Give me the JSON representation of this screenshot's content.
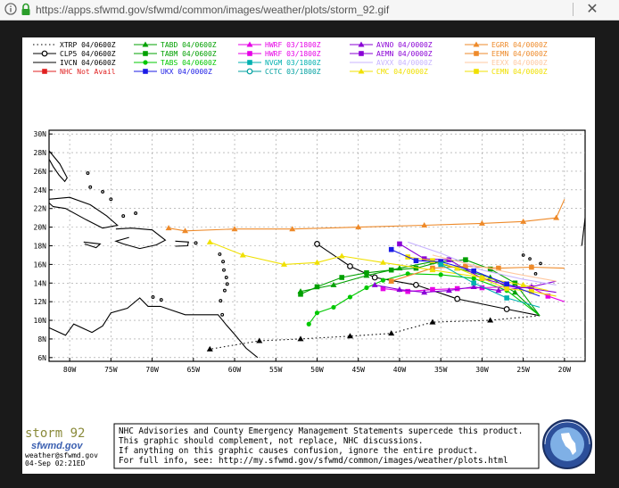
{
  "browser": {
    "url": "https://apps.sfwmd.gov/sfwmd/common/images/weather/plots/storm_92.gif",
    "close_glyph": "✕"
  },
  "legend": [
    {
      "label": "XTRP 04/0600Z",
      "color": "#000000",
      "marker": "dot-line"
    },
    {
      "label": "TABD 04/0600Z",
      "color": "#00a000",
      "marker": "triangle"
    },
    {
      "label": "HWRF 03/1800Z",
      "color": "#e600e6",
      "marker": "triangle"
    },
    {
      "label": "AVNO 04/0000Z",
      "color": "#8a00d6",
      "marker": "triangle"
    },
    {
      "label": "EGRR 04/0000Z",
      "color": "#ee8a2a",
      "marker": "triangle"
    },
    {
      "label": "CLP5 04/0600Z",
      "color": "#000000",
      "marker": "circle"
    },
    {
      "label": "TABM 04/0600Z",
      "color": "#00a000",
      "marker": "square"
    },
    {
      "label": "HWRF 03/1800Z",
      "color": "#e600e6",
      "marker": "square"
    },
    {
      "label": "AEMN 04/0000Z",
      "color": "#8a00d6",
      "marker": "square"
    },
    {
      "label": "EEMN 04/0000Z",
      "color": "#ee8a2a",
      "marker": "square"
    },
    {
      "label": "IVCN 04/0600Z",
      "color": "#000000",
      "marker": "line"
    },
    {
      "label": "TABS 04/0600Z",
      "color": "#00c800",
      "marker": "dot"
    },
    {
      "label": "NVGM 03/1800Z",
      "color": "#00b0b0",
      "marker": "square"
    },
    {
      "label": "AVXX 04/0000Z",
      "color": "#c8b4ff",
      "marker": "line"
    },
    {
      "label": "EEXX 04/0000Z",
      "color": "#ffc8a0",
      "marker": "line"
    },
    {
      "label": "NHC Not Avail",
      "color": "#e02020",
      "marker": "square"
    },
    {
      "label": "UKX 04/0000Z",
      "color": "#1a1ae6",
      "marker": "square"
    },
    {
      "label": "CCTC 03/1800Z",
      "color": "#00a0a0",
      "marker": "circle"
    },
    {
      "label": "CMC 04/0000Z",
      "color": "#f0e000",
      "marker": "triangle"
    },
    {
      "label": "CEMN 04/0000Z",
      "color": "#f0e000",
      "marker": "square"
    }
  ],
  "map": {
    "lat_ticks": [
      30,
      28,
      26,
      24,
      22,
      20,
      18,
      16,
      14,
      12,
      10,
      8,
      6
    ],
    "lat_labels": [
      "30N",
      "28N",
      "26N",
      "24N",
      "22N",
      "20N",
      "18N",
      "16N",
      "14N",
      "12N",
      "10N",
      "8N",
      "6N"
    ],
    "lon_ticks": [
      80,
      75,
      70,
      65,
      60,
      55,
      50,
      45,
      40,
      35,
      30,
      25,
      20
    ],
    "lon_labels": [
      "80W",
      "75W",
      "70W",
      "65W",
      "60W",
      "55W",
      "50W",
      "45W",
      "40W",
      "35W",
      "30W",
      "25W",
      "20W"
    ]
  },
  "chart_data": {
    "type": "scatter",
    "title": "",
    "xlabel": "",
    "ylabel": "",
    "xlim": [
      -82.5,
      -17.5
    ],
    "ylim": [
      5.6,
      30.4
    ],
    "grid": true,
    "series": [
      {
        "name": "XTRP 04/0600Z",
        "color": "#000000",
        "marker": "triangle",
        "line": "dotted",
        "points": [
          [
            -23,
            10.5
          ],
          [
            -29,
            10
          ],
          [
            -36,
            9.8
          ],
          [
            -41,
            8.6
          ],
          [
            -46,
            8.3
          ],
          [
            -52,
            8
          ],
          [
            -57,
            7.8
          ],
          [
            -63,
            6.9
          ]
        ]
      },
      {
        "name": "CLP5 04/0600Z",
        "color": "#000000",
        "marker": "circle",
        "line": "solid",
        "points": [
          [
            -23,
            10.5
          ],
          [
            -27,
            11.2
          ],
          [
            -33,
            12.3
          ],
          [
            -38,
            13.8
          ],
          [
            -43,
            14.6
          ],
          [
            -46,
            15.8
          ],
          [
            -50,
            18.2
          ]
        ]
      },
      {
        "name": "TABD 04/0600Z",
        "color": "#00a000",
        "marker": "triangle",
        "line": "solid",
        "points": [
          [
            -23,
            10.5
          ],
          [
            -26,
            13
          ],
          [
            -29,
            14.6
          ],
          [
            -33,
            15.6
          ],
          [
            -36,
            16.3
          ],
          [
            -40,
            15.6
          ],
          [
            -44,
            14.8
          ],
          [
            -48,
            13.8
          ],
          [
            -52,
            13.1
          ]
        ]
      },
      {
        "name": "TABM 04/0600Z",
        "color": "#00a000",
        "marker": "square",
        "line": "solid",
        "points": [
          [
            -23,
            10.5
          ],
          [
            -26,
            14
          ],
          [
            -29,
            15.5
          ],
          [
            -32,
            16.5
          ],
          [
            -35,
            16.3
          ],
          [
            -38,
            15.6
          ],
          [
            -41,
            15.4
          ],
          [
            -44,
            15.1
          ],
          [
            -47,
            14.6
          ],
          [
            -50,
            13.6
          ],
          [
            -52,
            12.8
          ]
        ]
      },
      {
        "name": "TABS 04/0600Z",
        "color": "#00c800",
        "marker": "dot",
        "line": "solid",
        "points": [
          [
            -23,
            10.5
          ],
          [
            -27,
            13.2
          ],
          [
            -31,
            14.5
          ],
          [
            -35,
            14.9
          ],
          [
            -39,
            15
          ],
          [
            -42,
            14.3
          ],
          [
            -44,
            13.5
          ],
          [
            -46,
            12.5
          ],
          [
            -48,
            11.4
          ],
          [
            -50,
            10.8
          ],
          [
            -51,
            9.6
          ]
        ]
      },
      {
        "name": "HWRF 03/1800Z",
        "color": "#e600e6",
        "marker": "square",
        "line": "solid",
        "points": [
          [
            -20,
            12
          ],
          [
            -22,
            12.6
          ],
          [
            -24,
            13.5
          ],
          [
            -27,
            13.6
          ],
          [
            -30,
            13.5
          ],
          [
            -33,
            13.4
          ],
          [
            -36,
            13.3
          ],
          [
            -39,
            13.1
          ],
          [
            -42,
            13.4
          ]
        ]
      },
      {
        "name": "AVNO 04/0000Z",
        "color": "#8a00d6",
        "marker": "triangle",
        "line": "solid",
        "points": [
          [
            -21,
            14.2
          ],
          [
            -24,
            13.6
          ],
          [
            -28,
            13.2
          ],
          [
            -31,
            13.6
          ],
          [
            -34,
            13.2
          ],
          [
            -37,
            13
          ],
          [
            -40,
            13.3
          ],
          [
            -43,
            13.8
          ]
        ]
      },
      {
        "name": "AEMN 04/0000Z",
        "color": "#8a00d6",
        "marker": "square",
        "line": "solid",
        "points": [
          [
            -21,
            13
          ],
          [
            -24,
            13.4
          ],
          [
            -27,
            13.8
          ],
          [
            -30,
            14.5
          ],
          [
            -34,
            16.5
          ],
          [
            -37,
            16.6
          ],
          [
            -40,
            18.2
          ]
        ]
      },
      {
        "name": "EGRR 04/0000Z",
        "color": "#ee8a2a",
        "marker": "triangle",
        "line": "solid",
        "points": [
          [
            -20,
            23
          ],
          [
            -21,
            21
          ],
          [
            -25,
            20.6
          ],
          [
            -30,
            20.4
          ],
          [
            -37,
            20.2
          ],
          [
            -45,
            20
          ],
          [
            -53,
            19.8
          ],
          [
            -60,
            19.8
          ],
          [
            -66,
            19.6
          ],
          [
            -68,
            19.9
          ]
        ]
      },
      {
        "name": "EEMN 04/0000Z",
        "color": "#ee8a2a",
        "marker": "square",
        "line": "solid",
        "points": [
          [
            -20,
            15.6
          ],
          [
            -24,
            15.7
          ],
          [
            -28,
            15.6
          ],
          [
            -32,
            15.8
          ],
          [
            -36,
            15.6
          ],
          [
            -41,
            14.2
          ]
        ]
      },
      {
        "name": "CMC 04/0000Z",
        "color": "#f0e000",
        "marker": "triangle",
        "line": "solid",
        "points": [
          [
            -22,
            13.2
          ],
          [
            -25,
            13.8
          ],
          [
            -30,
            14.6
          ],
          [
            -36,
            15.4
          ],
          [
            -42,
            16.2
          ],
          [
            -47,
            16.9
          ],
          [
            -50,
            16.2
          ],
          [
            -54,
            16
          ],
          [
            -59,
            17
          ],
          [
            -63,
            18.4
          ]
        ]
      },
      {
        "name": "CEMN 04/0000Z",
        "color": "#f0e000",
        "marker": "square",
        "line": "solid",
        "points": [
          [
            -21,
            12.6
          ],
          [
            -24,
            13.1
          ],
          [
            -27,
            13.4
          ],
          [
            -30,
            14.5
          ],
          [
            -33,
            15.6
          ],
          [
            -36,
            16.4
          ],
          [
            -39,
            16.8
          ]
        ]
      },
      {
        "name": "UKX 04/0000Z",
        "color": "#1a1ae6",
        "marker": "square",
        "line": "solid",
        "points": [
          [
            -23,
            12.6
          ],
          [
            -27,
            13.9
          ],
          [
            -31,
            15.3
          ],
          [
            -35,
            16.3
          ],
          [
            -38,
            16.4
          ],
          [
            -41,
            17.6
          ]
        ]
      },
      {
        "name": "NVGM 03/1800Z",
        "color": "#00b0b0",
        "marker": "square",
        "line": "solid",
        "points": [
          [
            -23,
            11.4
          ],
          [
            -27,
            12.4
          ],
          [
            -31,
            14
          ],
          [
            -35,
            16
          ]
        ]
      },
      {
        "name": "AVXX 04/0000Z",
        "color": "#c8b4ff",
        "marker": "none",
        "line": "solid",
        "points": [
          [
            -21,
            13.8
          ],
          [
            -25,
            14.4
          ],
          [
            -30,
            15.4
          ],
          [
            -35,
            17.2
          ],
          [
            -39,
            18.4
          ]
        ]
      },
      {
        "name": "EEXX 04/0000Z",
        "color": "#ffc8a0",
        "marker": "none",
        "line": "solid",
        "points": [
          [
            -21,
            14.2
          ],
          [
            -26,
            15
          ],
          [
            -31,
            15.9
          ],
          [
            -36,
            17
          ]
        ]
      }
    ]
  },
  "footer": {
    "storm_name": "storm_92",
    "logo_text": "sfwmd.gov",
    "email": "weather@sfwmd.gov",
    "timestamp": "04-Sep 02:21ED",
    "notice_lines": [
      "NHC Advisories and County Emergency Management Statements supercede this product.",
      "This graphic should complement, not replace, NHC discussions.",
      "If anything on this graphic causes confusion, ignore the entire product.",
      "For full info, see:  http://my.sfwmd.gov/sfwmd/common/images/weather/plots.html"
    ],
    "seal_text": "SOUTH FLORIDA WATER MANAGEMENT DISTRICT"
  }
}
